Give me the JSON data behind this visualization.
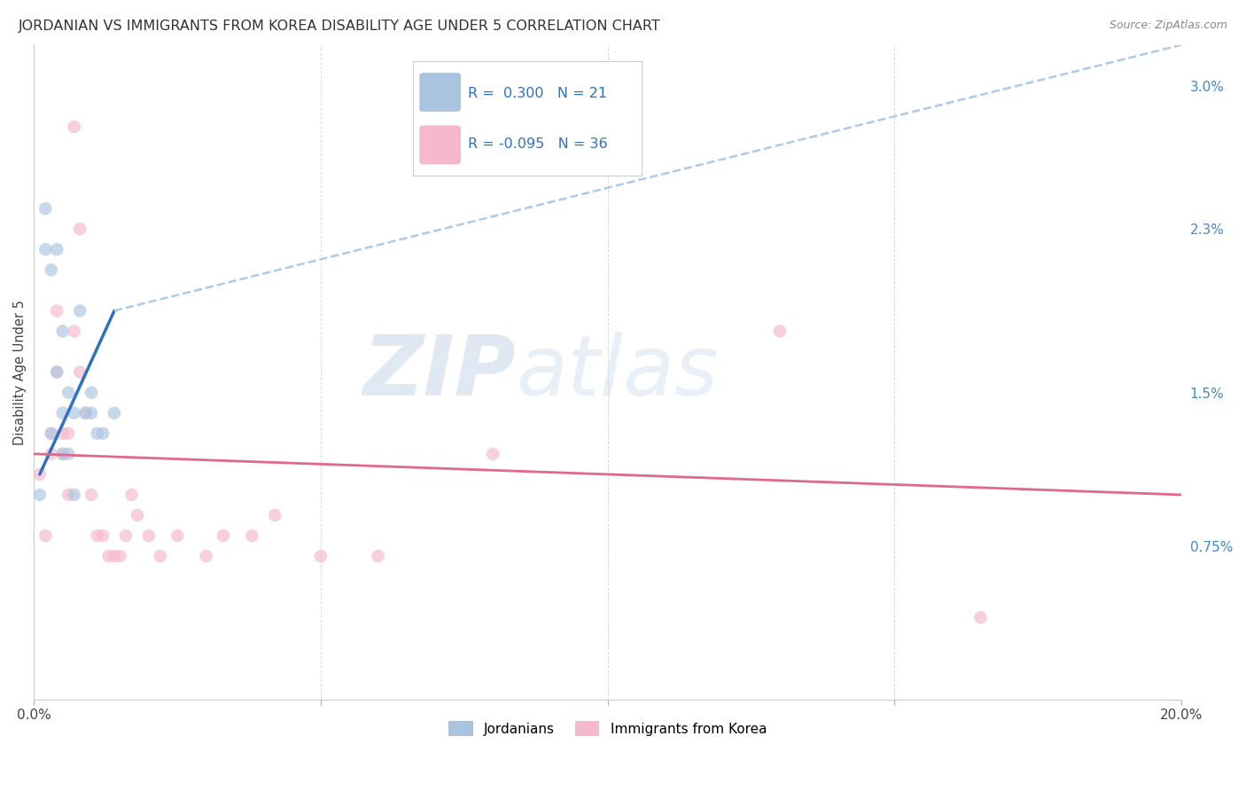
{
  "title": "JORDANIAN VS IMMIGRANTS FROM KOREA DISABILITY AGE UNDER 5 CORRELATION CHART",
  "source": "Source: ZipAtlas.com",
  "ylabel": "Disability Age Under 5",
  "watermark_zip": "ZIP",
  "watermark_atlas": "atlas",
  "xlim": [
    0.0,
    0.2
  ],
  "ylim": [
    0.0,
    0.032
  ],
  "xtick_vals": [
    0.0,
    0.05,
    0.1,
    0.15,
    0.2
  ],
  "xticklabels": [
    "0.0%",
    "",
    "",
    "",
    "20.0%"
  ],
  "ytick_right_vals": [
    0.0075,
    0.015,
    0.023,
    0.03
  ],
  "ytick_right_labels": [
    "0.75%",
    "1.5%",
    "2.3%",
    "3.0%"
  ],
  "blue_R": "0.300",
  "blue_N": "21",
  "pink_R": "-0.095",
  "pink_N": "36",
  "legend_label1": "Jordanians",
  "legend_label2": "Immigrants from Korea",
  "blue_scatter_color": "#aac4e0",
  "pink_scatter_color": "#f5b8cc",
  "blue_line_color": "#3070c0",
  "pink_line_color": "#e06888",
  "blue_dash_color": "#aacce8",
  "title_fontsize": 11.5,
  "source_fontsize": 9,
  "tick_fontsize": 11,
  "legend_fontsize": 12,
  "marker_size": 110,
  "marker_alpha": 0.65,
  "jordanians_x": [
    0.001,
    0.002,
    0.002,
    0.003,
    0.003,
    0.004,
    0.004,
    0.005,
    0.005,
    0.005,
    0.006,
    0.006,
    0.007,
    0.007,
    0.008,
    0.009,
    0.01,
    0.01,
    0.011,
    0.012,
    0.014
  ],
  "jordanians_y": [
    0.01,
    0.022,
    0.024,
    0.021,
    0.013,
    0.022,
    0.016,
    0.018,
    0.014,
    0.012,
    0.012,
    0.015,
    0.014,
    0.01,
    0.019,
    0.014,
    0.015,
    0.014,
    0.013,
    0.013,
    0.014
  ],
  "korea_x": [
    0.001,
    0.002,
    0.003,
    0.003,
    0.004,
    0.004,
    0.005,
    0.005,
    0.006,
    0.006,
    0.007,
    0.007,
    0.008,
    0.008,
    0.009,
    0.01,
    0.011,
    0.012,
    0.013,
    0.014,
    0.015,
    0.016,
    0.017,
    0.018,
    0.02,
    0.022,
    0.025,
    0.03,
    0.033,
    0.038,
    0.042,
    0.05,
    0.06,
    0.08,
    0.13,
    0.165
  ],
  "korea_y": [
    0.011,
    0.008,
    0.012,
    0.013,
    0.016,
    0.019,
    0.013,
    0.012,
    0.01,
    0.013,
    0.018,
    0.028,
    0.016,
    0.023,
    0.014,
    0.01,
    0.008,
    0.008,
    0.007,
    0.007,
    0.007,
    0.008,
    0.01,
    0.009,
    0.008,
    0.007,
    0.008,
    0.007,
    0.008,
    0.008,
    0.009,
    0.007,
    0.007,
    0.012,
    0.018,
    0.004
  ],
  "blue_line_x_start": 0.001,
  "blue_line_x_solid_end": 0.014,
  "blue_line_x_dash_end": 0.2,
  "blue_line_y_start": 0.011,
  "blue_line_y_solid_end": 0.019,
  "blue_line_y_dash_end": 0.032,
  "pink_line_x_start": 0.0,
  "pink_line_x_end": 0.2,
  "pink_line_y_start": 0.012,
  "pink_line_y_end": 0.01
}
